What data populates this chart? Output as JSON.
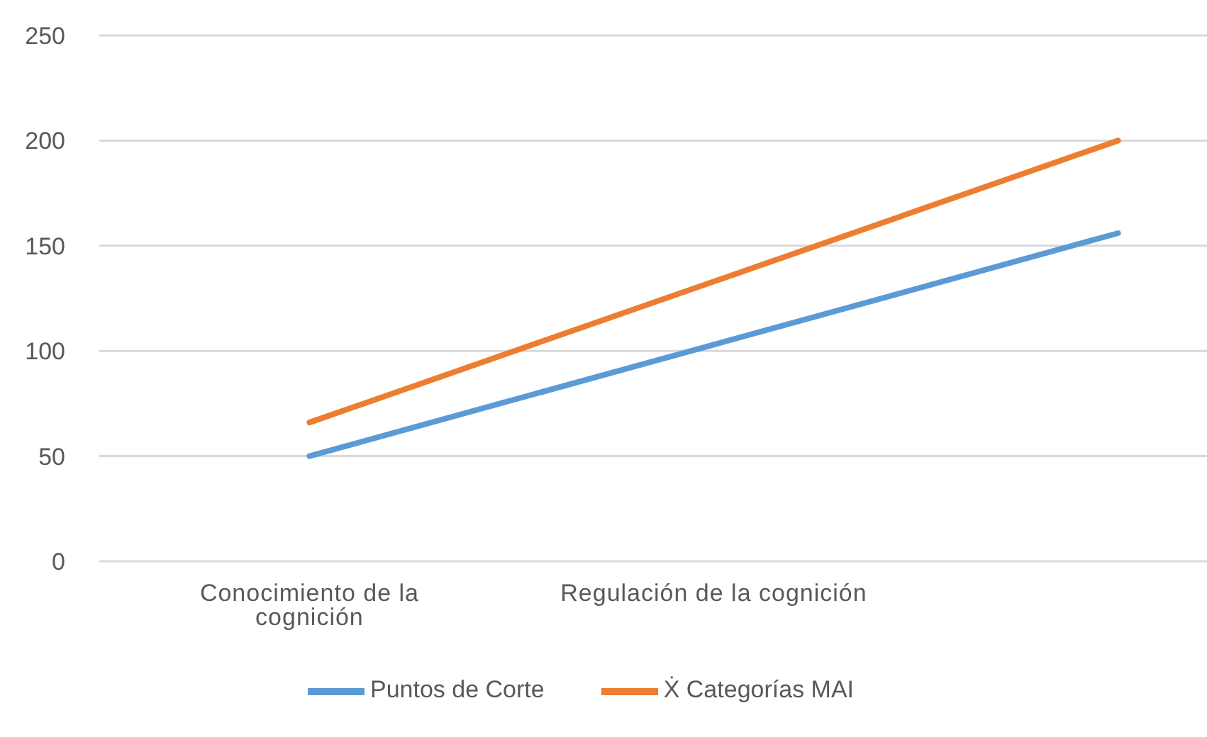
{
  "chart_data": {
    "type": "line",
    "categories": [
      "Conocimiento de la cognición",
      "Regulación de la cognición",
      null
    ],
    "series": [
      {
        "name": "Puntos de Corte",
        "color": "#5b9bd5",
        "values": [
          50,
          103,
          156
        ]
      },
      {
        "name": "Ẋ Categorías MAI",
        "color": "#ed7d31",
        "values": [
          66,
          133,
          200
        ]
      }
    ],
    "ylim": [
      0,
      250
    ],
    "yticks": [
      0,
      50,
      100,
      150,
      200,
      250
    ],
    "grid": "y",
    "legend": "bottom",
    "marker": "none",
    "line_style": "solid"
  }
}
